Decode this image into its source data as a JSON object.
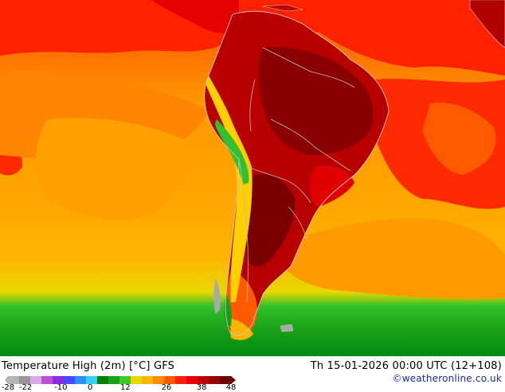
{
  "map": {
    "title": "Temperature High (2m) [°C] GFS",
    "valid_time": "Th 15-01-2026 00:00 UTC (12+108)",
    "credit": "©weatheronline.co.uk",
    "region": "South America",
    "units": "°C",
    "colorbar": {
      "tick_labels": [
        "-28",
        "-22",
        "-10",
        "0",
        "12",
        "26",
        "38",
        "48"
      ],
      "colors": [
        "#b4b4b4",
        "#969696",
        "#d8a8e8",
        "#c050d8",
        "#8a2be2",
        "#4848ff",
        "#2e8fff",
        "#36d0ff",
        "#008000",
        "#18a018",
        "#40c828",
        "#e8d800",
        "#ffb400",
        "#ff8c00",
        "#ff5a00",
        "#ff2000",
        "#e60000",
        "#c00000",
        "#960000",
        "#6a0000"
      ]
    }
  }
}
